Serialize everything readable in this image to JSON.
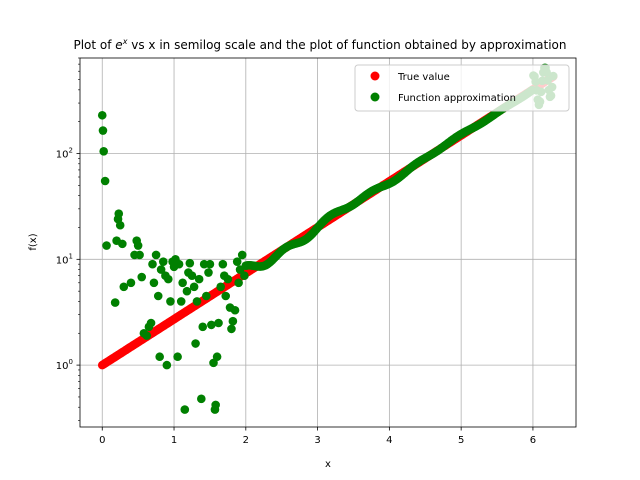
{
  "chart_data": {
    "type": "scatter",
    "title_before": "Plot of ",
    "title_math_base": "e",
    "title_math_exp": "x",
    "title_after": " vs x in semilog scale and the plot of function obtained by approximation",
    "xlabel": "x",
    "ylabel": "f(x)",
    "xlim": [
      -0.31,
      6.6
    ],
    "ylim": [
      0.26,
      800
    ],
    "yscale": "log",
    "grid": true,
    "legend_position": "top-right",
    "x_ticks": [
      {
        "value": 0,
        "label": "0"
      },
      {
        "value": 1,
        "label": "1"
      },
      {
        "value": 2,
        "label": "2"
      },
      {
        "value": 3,
        "label": "3"
      },
      {
        "value": 4,
        "label": "4"
      },
      {
        "value": 5,
        "label": "5"
      },
      {
        "value": 6,
        "label": "6"
      }
    ],
    "y_ticks": [
      {
        "value": 1,
        "base": "10",
        "exp": "0"
      },
      {
        "value": 10,
        "base": "10",
        "exp": "1"
      },
      {
        "value": 100,
        "base": "10",
        "exp": "2"
      }
    ],
    "series": [
      {
        "name": "True value",
        "color": "#ff0000",
        "x_range": [
          0,
          6.283
        ],
        "n": 400,
        "function": "exp"
      },
      {
        "name": "Function approximation",
        "color": "#008000",
        "x_smooth_start": 2.0,
        "x_end": 6.283,
        "n_smooth": 280,
        "points": [
          [
            0.0,
            230
          ],
          [
            0.01,
            165
          ],
          [
            0.02,
            105
          ],
          [
            0.04,
            55
          ],
          [
            0.06,
            13.5
          ],
          [
            0.18,
            3.9
          ],
          [
            0.2,
            15
          ],
          [
            0.22,
            24
          ],
          [
            0.23,
            27
          ],
          [
            0.25,
            21
          ],
          [
            0.28,
            14
          ],
          [
            0.3,
            5.5
          ],
          [
            0.4,
            6.0
          ],
          [
            0.45,
            11
          ],
          [
            0.48,
            15
          ],
          [
            0.5,
            13.5
          ],
          [
            0.52,
            11
          ],
          [
            0.55,
            6.8
          ],
          [
            0.58,
            2.0
          ],
          [
            0.62,
            1.9
          ],
          [
            0.65,
            2.3
          ],
          [
            0.68,
            2.5
          ],
          [
            0.7,
            9.0
          ],
          [
            0.72,
            6.0
          ],
          [
            0.75,
            11
          ],
          [
            0.78,
            4.5
          ],
          [
            0.8,
            1.2
          ],
          [
            0.82,
            8.0
          ],
          [
            0.85,
            9.5
          ],
          [
            0.88,
            7.0
          ],
          [
            0.9,
            1.0
          ],
          [
            0.92,
            6.5
          ],
          [
            0.95,
            4.0
          ],
          [
            0.98,
            9.5
          ],
          [
            1.0,
            8.5
          ],
          [
            1.02,
            10
          ],
          [
            1.05,
            1.2
          ],
          [
            1.07,
            9.0
          ],
          [
            1.1,
            4.0
          ],
          [
            1.12,
            6.0
          ],
          [
            1.15,
            0.38
          ],
          [
            1.18,
            5.0
          ],
          [
            1.2,
            7.5
          ],
          [
            1.22,
            9.2
          ],
          [
            1.25,
            7.0
          ],
          [
            1.28,
            5.5
          ],
          [
            1.3,
            1.6
          ],
          [
            1.32,
            4.0
          ],
          [
            1.35,
            6.5
          ],
          [
            1.38,
            0.48
          ],
          [
            1.4,
            2.3
          ],
          [
            1.42,
            9.0
          ],
          [
            1.45,
            4.5
          ],
          [
            1.48,
            7.5
          ],
          [
            1.5,
            9.0
          ],
          [
            1.52,
            2.4
          ],
          [
            1.55,
            1.05
          ],
          [
            1.57,
            0.38
          ],
          [
            1.58,
            0.42
          ],
          [
            1.6,
            1.2
          ],
          [
            1.62,
            2.5
          ],
          [
            1.65,
            5.5
          ],
          [
            1.68,
            9.0
          ],
          [
            1.7,
            7.0
          ],
          [
            1.72,
            4.5
          ],
          [
            1.75,
            6.5
          ],
          [
            1.78,
            3.5
          ],
          [
            1.8,
            2.2
          ],
          [
            1.82,
            2.6
          ],
          [
            1.85,
            3.3
          ],
          [
            1.88,
            9.5
          ],
          [
            1.9,
            6.0
          ],
          [
            1.92,
            8.0
          ],
          [
            1.95,
            11
          ],
          [
            1.98,
            7.0
          ]
        ]
      }
    ]
  }
}
